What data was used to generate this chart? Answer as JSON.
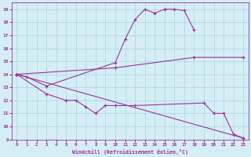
{
  "xlabel": "Windchill (Refroidissement éolien,°C)",
  "xlim": [
    -0.5,
    23.5
  ],
  "ylim": [
    9,
    19.5
  ],
  "xticks": [
    0,
    1,
    2,
    3,
    4,
    5,
    6,
    7,
    8,
    9,
    10,
    11,
    12,
    13,
    14,
    15,
    16,
    17,
    18,
    19,
    20,
    21,
    22,
    23
  ],
  "yticks": [
    9,
    10,
    11,
    12,
    13,
    14,
    15,
    16,
    17,
    18,
    19
  ],
  "line_color": "#993399",
  "bg_color": "#d5eef5",
  "grid_color": "#aad4e0",
  "lines": [
    {
      "x": [
        0,
        1,
        3,
        10,
        11,
        12,
        13,
        14,
        15,
        16,
        17,
        18
      ],
      "y": [
        14.0,
        13.8,
        13.1,
        14.9,
        16.7,
        18.2,
        19.0,
        18.7,
        19.0,
        19.0,
        18.9,
        17.4
      ]
    },
    {
      "x": [
        0,
        10,
        18,
        23
      ],
      "y": [
        14.0,
        14.5,
        15.3,
        15.3
      ]
    },
    {
      "x": [
        0,
        3,
        5,
        6,
        7,
        8,
        9,
        10,
        12,
        19,
        20,
        21,
        22,
        23
      ],
      "y": [
        14.0,
        12.5,
        12.0,
        12.0,
        11.5,
        11.0,
        11.6,
        11.6,
        11.6,
        11.8,
        11.0,
        11.0,
        9.4,
        9.1
      ]
    },
    {
      "x": [
        0,
        23
      ],
      "y": [
        14.0,
        9.1
      ]
    }
  ]
}
